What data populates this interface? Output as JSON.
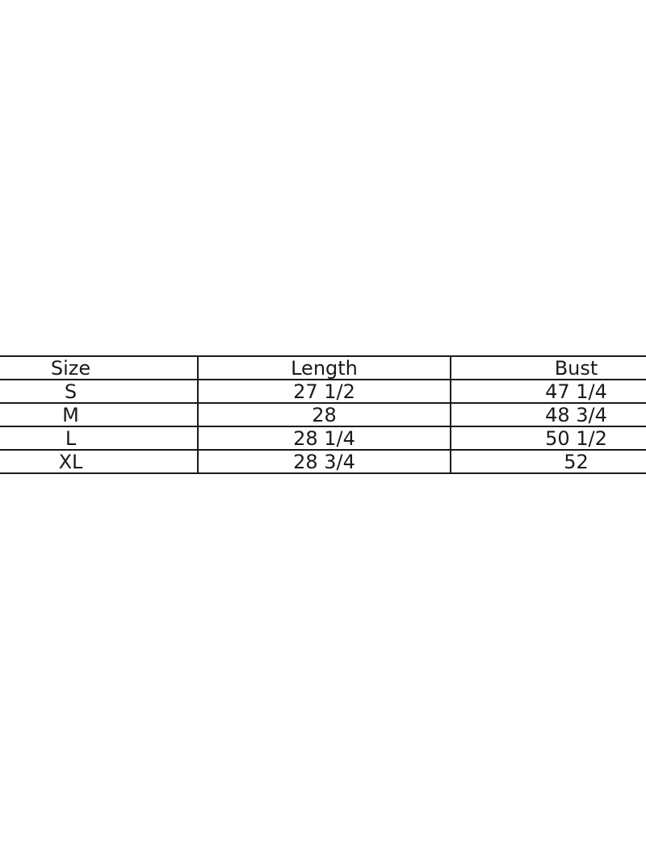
{
  "size_table": {
    "headers": [
      "Size",
      "Length",
      "Bust"
    ],
    "rows": [
      [
        "S",
        "27 1/2",
        "47 1/4"
      ],
      [
        "M",
        "28",
        "48 3/4"
      ],
      [
        "L",
        "28 1/4",
        "50 1/2"
      ],
      [
        "XL",
        "28 3/4",
        "52"
      ]
    ]
  }
}
